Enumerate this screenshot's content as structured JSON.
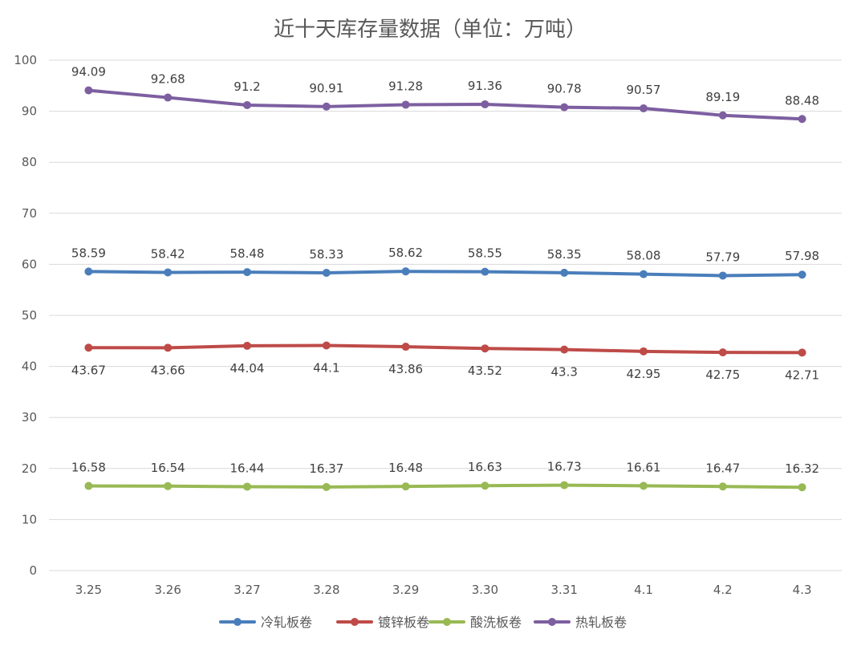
{
  "chart_data": {
    "type": "line",
    "title": "近十天库存量数据（单位：万吨）",
    "xlabel": "",
    "ylabel": "",
    "categories": [
      "3.25",
      "3.26",
      "3.27",
      "3.28",
      "3.29",
      "3.30",
      "3.31",
      "4.1",
      "4.2",
      "4.3"
    ],
    "ylim": [
      0,
      100
    ],
    "yticks": [
      0,
      10,
      20,
      30,
      40,
      50,
      60,
      70,
      80,
      90,
      100
    ],
    "grid": true,
    "legend_position": "bottom",
    "series": [
      {
        "name": "冷轧板卷",
        "color": "#4a7ebb",
        "label_position": "above",
        "values": [
          58.59,
          58.42,
          58.48,
          58.33,
          58.62,
          58.55,
          58.35,
          58.08,
          57.79,
          57.98
        ]
      },
      {
        "name": "镀锌板卷",
        "color": "#be4b48",
        "label_position": "below",
        "values": [
          43.67,
          43.66,
          44.04,
          44.1,
          43.86,
          43.52,
          43.3,
          42.95,
          42.75,
          42.71
        ]
      },
      {
        "name": "酸洗板卷",
        "color": "#98b954",
        "label_position": "above",
        "values": [
          16.58,
          16.54,
          16.44,
          16.37,
          16.48,
          16.63,
          16.73,
          16.61,
          16.47,
          16.32
        ]
      },
      {
        "name": "热轧板卷",
        "color": "#7d5fa0",
        "label_position": "above",
        "values": [
          94.09,
          92.68,
          91.2,
          90.91,
          91.28,
          91.36,
          90.78,
          90.57,
          89.19,
          88.48
        ]
      }
    ]
  }
}
